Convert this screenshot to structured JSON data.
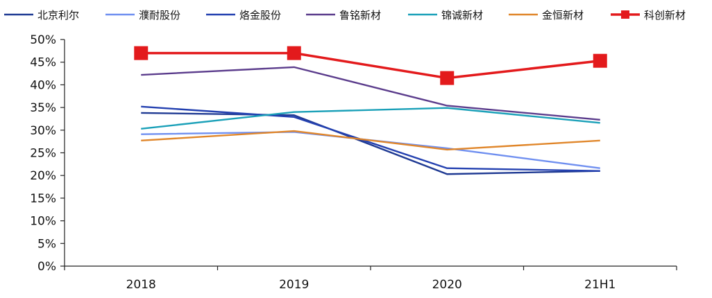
{
  "chart_data": {
    "type": "line",
    "categories": [
      "2018",
      "2019",
      "2020",
      "21H1"
    ],
    "ylim": [
      0,
      50
    ],
    "yticks": [
      "0%",
      "5%",
      "10%",
      "15%",
      "20%",
      "25%",
      "30%",
      "35%",
      "40%",
      "45%",
      "50%"
    ],
    "grid": false,
    "legend_position": "top",
    "series": [
      {
        "name": "北京利尔",
        "values": [
          33.8,
          33.3,
          20.3,
          21.0
        ],
        "color": "#1f3a93"
      },
      {
        "name": "濮耐股份",
        "values": [
          29.1,
          29.6,
          26.0,
          21.6
        ],
        "color": "#6f8ff0"
      },
      {
        "name": "烙金股份",
        "values": [
          35.2,
          32.9,
          21.6,
          21.0
        ],
        "color": "#2340b0"
      },
      {
        "name": "鲁铭新材",
        "values": [
          42.2,
          43.9,
          35.4,
          32.3
        ],
        "color": "#5b3c8c"
      },
      {
        "name": "锦诚新材",
        "values": [
          30.3,
          34.0,
          34.9,
          31.6
        ],
        "color": "#1aa0b8"
      },
      {
        "name": "金恒新材",
        "values": [
          27.7,
          29.8,
          25.7,
          27.7
        ],
        "color": "#e0862a"
      },
      {
        "name": "科创新材",
        "values": [
          47.0,
          47.0,
          41.5,
          45.3
        ],
        "color": "#e31a1c",
        "marker": "square"
      }
    ]
  }
}
